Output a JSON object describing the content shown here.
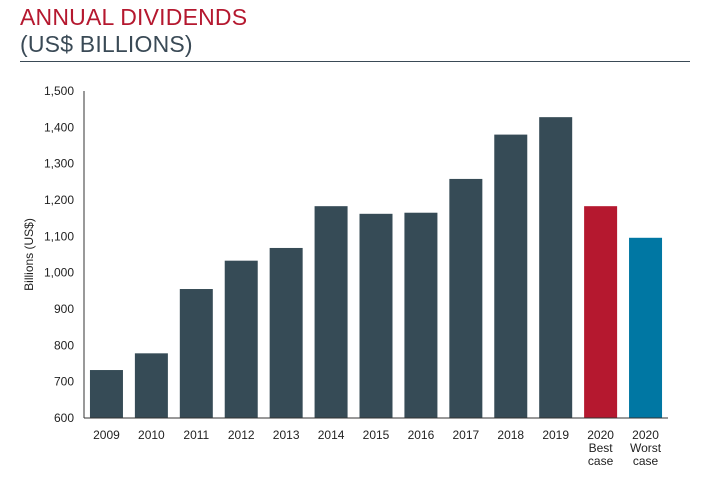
{
  "title": "ANNUAL DIVIDENDS",
  "subtitle": "(US$ BILLIONS)",
  "colors": {
    "title": "#b5182f",
    "subtitle": "#3a4a56",
    "bar_default": "#364b56",
    "bar_best_case": "#b5182f",
    "bar_worst_case": "#0077a3"
  },
  "chart_data": {
    "type": "bar",
    "title": "ANNUAL DIVIDENDS",
    "subtitle": "(US$ BILLIONS)",
    "ylabel": "Billions (US$)",
    "xlabel": "",
    "ylim": [
      600,
      1500
    ],
    "yticks": [
      "1,500",
      "1,400",
      "1,300",
      "1,200",
      "1,100",
      "1,000",
      "900",
      "800",
      "700",
      "600"
    ],
    "ytick_values": [
      1500,
      1400,
      1300,
      1200,
      1100,
      1000,
      900,
      800,
      700,
      600
    ],
    "grid": false,
    "categories": [
      {
        "lines": [
          "2009"
        ]
      },
      {
        "lines": [
          "2010"
        ]
      },
      {
        "lines": [
          "2011"
        ]
      },
      {
        "lines": [
          "2012"
        ]
      },
      {
        "lines": [
          "2013"
        ]
      },
      {
        "lines": [
          "2014"
        ]
      },
      {
        "lines": [
          "2015"
        ]
      },
      {
        "lines": [
          "2016"
        ]
      },
      {
        "lines": [
          "2017"
        ]
      },
      {
        "lines": [
          "2018"
        ]
      },
      {
        "lines": [
          "2019"
        ]
      },
      {
        "lines": [
          "2020",
          "Best",
          "case"
        ]
      },
      {
        "lines": [
          "2020",
          "Worst",
          "case"
        ]
      }
    ],
    "values": [
      732,
      778,
      955,
      1033,
      1068,
      1183,
      1162,
      1165,
      1258,
      1380,
      1428,
      1183,
      1096
    ],
    "bar_colors": [
      "#364b56",
      "#364b56",
      "#364b56",
      "#364b56",
      "#364b56",
      "#364b56",
      "#364b56",
      "#364b56",
      "#364b56",
      "#364b56",
      "#364b56",
      "#b5182f",
      "#0077a3"
    ]
  }
}
